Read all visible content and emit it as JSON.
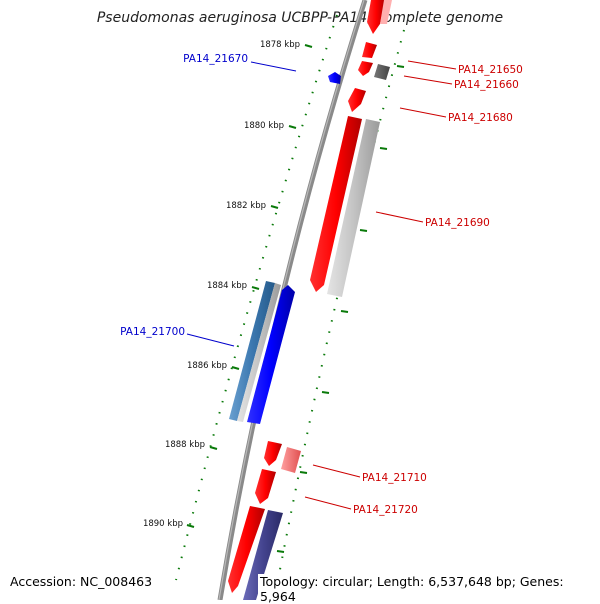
{
  "title": "Pseudomonas aeruginosa UCBPP-PA14, complete genome",
  "footer": {
    "accession": "Accession: NC_008463",
    "summary": "Topology: circular; Length: 6,537,648 bp; Genes: 5,964"
  },
  "ticks": [
    "1878 kbp",
    "1880 kbp",
    "1882 kbp",
    "1884 kbp",
    "1886 kbp",
    "1888 kbp",
    "1890 kbp"
  ],
  "genes": {
    "forward": [
      "PA14_21650",
      "PA14_21660",
      "PA14_21680",
      "PA14_21690",
      "PA14_21710",
      "PA14_21720"
    ],
    "reverse": [
      "PA14_21670",
      "PA14_21700"
    ]
  },
  "colors": {
    "forward": "#cc0000",
    "reverse": "#0000cc",
    "backbone": "#888888",
    "ruler": "#0a7a0a"
  }
}
